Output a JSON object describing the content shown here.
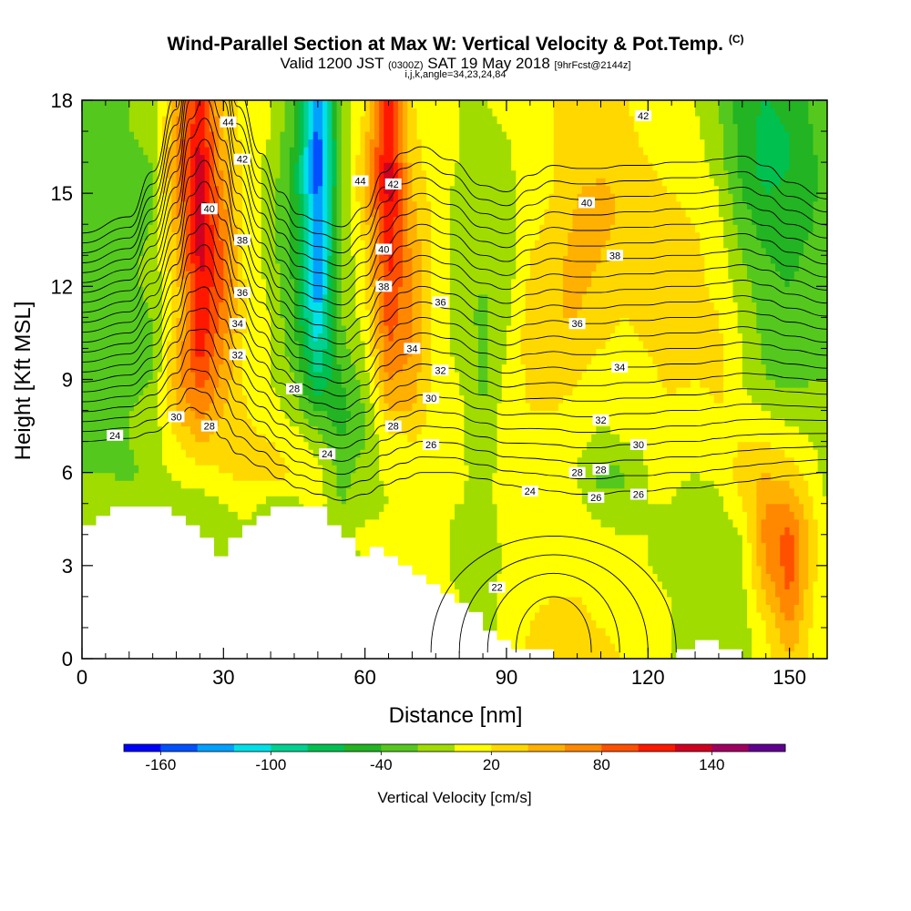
{
  "title": {
    "main": "Wind-Parallel Section at Max W: Vertical Velocity & Pot.Temp.",
    "copyright": "(C)",
    "valid_prefix": "Valid 1200 JST",
    "valid_utc": "(0300Z)",
    "valid_date": "SAT 19 May 2018",
    "forecast": "[9hrFcst@2144z]",
    "grid_info": "i,j,k,angle=34,23,24,84"
  },
  "chart_data": {
    "type": "heatmap",
    "title": "Wind-Parallel Section at Max W: Vertical Velocity & Pot.Temp.",
    "xlabel": "Distance [nm]",
    "ylabel": "Height [Kft MSL]",
    "xlim": [
      0,
      158
    ],
    "ylim": [
      0,
      18
    ],
    "xticks": [
      0,
      30,
      60,
      90,
      120,
      150
    ],
    "yticks": [
      0,
      3,
      6,
      9,
      12,
      15,
      18
    ],
    "colorbar": {
      "label": "Vertical Velocity [cm/s]",
      "tick_labels": [
        "-160",
        "-100",
        "-40",
        "20",
        "80",
        "140"
      ],
      "levels": [
        -180,
        -160,
        -140,
        -120,
        -100,
        -80,
        -60,
        -40,
        -20,
        0,
        20,
        40,
        60,
        80,
        100,
        120,
        140,
        160,
        180
      ],
      "colors": [
        "#0000ff",
        "#0050ff",
        "#00a0ff",
        "#00e0e8",
        "#00d090",
        "#00c050",
        "#22b422",
        "#55c81e",
        "#a0dc00",
        "#ffff00",
        "#ffd800",
        "#ffb000",
        "#ff8800",
        "#ff5000",
        "#ff1800",
        "#d00020",
        "#a00060",
        "#600090"
      ]
    },
    "w_field": {
      "x": [
        0,
        5,
        10,
        15,
        20,
        25,
        30,
        35,
        40,
        45,
        50,
        55,
        60,
        65,
        70,
        75,
        80,
        85,
        90,
        95,
        100,
        105,
        110,
        115,
        120,
        125,
        130,
        135,
        140,
        145,
        150,
        155,
        158
      ],
      "y": [
        0,
        1,
        2,
        3,
        4,
        5,
        6,
        7,
        8,
        9,
        10,
        11,
        12,
        13,
        14,
        15,
        16,
        17,
        18
      ],
      "values": [
        [
          -10,
          -10,
          -10,
          -10,
          -10,
          -10,
          -10,
          -10,
          -10,
          -10,
          -10,
          -10,
          -10,
          -10,
          5,
          10,
          0,
          -20,
          10,
          25,
          35,
          30,
          25,
          20,
          10,
          0,
          -10,
          -15,
          -10,
          15,
          40,
          10,
          0
        ],
        [
          -10,
          -10,
          -10,
          -10,
          -10,
          -10,
          -10,
          -10,
          -10,
          -10,
          -10,
          -10,
          -10,
          -10,
          5,
          10,
          0,
          -15,
          10,
          20,
          30,
          25,
          20,
          15,
          10,
          0,
          -10,
          -15,
          -10,
          20,
          60,
          15,
          0
        ],
        [
          -10,
          -10,
          -10,
          -10,
          -10,
          -10,
          -10,
          -10,
          -10,
          -10,
          -10,
          -10,
          -10,
          5,
          10,
          10,
          0,
          -15,
          10,
          15,
          20,
          20,
          15,
          10,
          5,
          0,
          -10,
          -15,
          -5,
          40,
          80,
          20,
          0
        ],
        [
          -10,
          -10,
          -10,
          -10,
          -10,
          -10,
          -10,
          -10,
          -10,
          -10,
          -10,
          -10,
          0,
          10,
          10,
          5,
          -5,
          -15,
          5,
          10,
          15,
          15,
          10,
          5,
          0,
          -5,
          -10,
          -15,
          -5,
          60,
          90,
          30,
          0
        ],
        [
          -10,
          -10,
          -10,
          -10,
          -10,
          -10,
          -10,
          -10,
          -10,
          -10,
          -10,
          -5,
          5,
          10,
          10,
          5,
          -5,
          -10,
          5,
          5,
          10,
          10,
          5,
          0,
          0,
          -10,
          -10,
          -10,
          0,
          70,
          85,
          30,
          0
        ],
        [
          0,
          -5,
          -10,
          -10,
          -10,
          -10,
          0,
          10,
          -10,
          -5,
          10,
          -20,
          -10,
          0,
          10,
          5,
          0,
          -5,
          5,
          10,
          10,
          5,
          -10,
          -20,
          0,
          0,
          -10,
          -5,
          20,
          60,
          60,
          20,
          0
        ],
        [
          -20,
          -20,
          -25,
          -10,
          5,
          10,
          20,
          25,
          30,
          20,
          10,
          -30,
          -10,
          5,
          15,
          10,
          5,
          -10,
          10,
          15,
          10,
          0,
          -30,
          -20,
          0,
          5,
          0,
          5,
          30,
          40,
          30,
          10,
          -10
        ],
        [
          -25,
          -30,
          -20,
          -10,
          20,
          40,
          30,
          25,
          20,
          10,
          -10,
          -40,
          -20,
          10,
          20,
          10,
          5,
          -15,
          10,
          15,
          10,
          5,
          -5,
          0,
          5,
          10,
          5,
          10,
          20,
          20,
          10,
          0,
          -20
        ],
        [
          -25,
          -30,
          -20,
          -15,
          40,
          70,
          40,
          20,
          10,
          -10,
          -40,
          -50,
          -20,
          40,
          40,
          10,
          5,
          -20,
          10,
          20,
          20,
          10,
          5,
          5,
          10,
          15,
          10,
          20,
          10,
          0,
          -10,
          -15,
          -20
        ],
        [
          -25,
          -30,
          -25,
          -20,
          50,
          90,
          50,
          15,
          0,
          -20,
          -80,
          -40,
          -10,
          60,
          50,
          10,
          0,
          -25,
          5,
          25,
          35,
          20,
          10,
          10,
          15,
          25,
          20,
          25,
          0,
          -20,
          -25,
          -20,
          -20
        ],
        [
          -25,
          -30,
          -25,
          -20,
          40,
          110,
          60,
          15,
          0,
          -30,
          -100,
          -30,
          0,
          80,
          60,
          10,
          -5,
          -25,
          0,
          30,
          40,
          30,
          20,
          15,
          20,
          30,
          25,
          25,
          0,
          -25,
          -30,
          -25,
          -20
        ],
        [
          -25,
          -30,
          -25,
          -20,
          30,
          120,
          70,
          15,
          0,
          -40,
          -120,
          -20,
          10,
          90,
          60,
          10,
          -10,
          -25,
          -5,
          30,
          40,
          40,
          25,
          20,
          25,
          35,
          30,
          20,
          -5,
          -30,
          -35,
          -25,
          -20
        ],
        [
          -25,
          -30,
          -25,
          -15,
          30,
          120,
          80,
          15,
          -5,
          -40,
          -140,
          -20,
          15,
          100,
          60,
          10,
          -10,
          -20,
          -10,
          25,
          35,
          45,
          35,
          25,
          30,
          35,
          25,
          15,
          -10,
          -35,
          -40,
          -30,
          -20
        ],
        [
          -25,
          -30,
          -25,
          -15,
          40,
          130,
          80,
          10,
          -10,
          -50,
          -140,
          -20,
          20,
          110,
          55,
          10,
          -10,
          -20,
          -10,
          20,
          30,
          50,
          40,
          30,
          30,
          30,
          25,
          10,
          -20,
          -40,
          -45,
          -35,
          -20
        ],
        [
          -25,
          -30,
          -25,
          -20,
          50,
          130,
          70,
          10,
          -10,
          -50,
          -150,
          -20,
          30,
          120,
          50,
          10,
          -10,
          -15,
          -10,
          15,
          25,
          45,
          45,
          35,
          30,
          25,
          20,
          5,
          -30,
          -50,
          -50,
          -40,
          -20
        ],
        [
          -25,
          -30,
          -25,
          -20,
          60,
          130,
          60,
          10,
          -10,
          -50,
          -150,
          -20,
          40,
          130,
          40,
          10,
          -5,
          -10,
          -10,
          15,
          20,
          40,
          45,
          35,
          25,
          20,
          15,
          0,
          -40,
          -60,
          -55,
          -45,
          -20
        ],
        [
          -25,
          -30,
          -25,
          -20,
          70,
          130,
          50,
          10,
          -5,
          -50,
          -160,
          -20,
          40,
          130,
          30,
          5,
          0,
          -10,
          -5,
          15,
          20,
          30,
          35,
          30,
          20,
          15,
          10,
          -10,
          -50,
          -70,
          -60,
          -45,
          -20
        ],
        [
          -25,
          -25,
          -20,
          -15,
          60,
          120,
          40,
          10,
          0,
          -40,
          -150,
          -20,
          30,
          120,
          25,
          5,
          0,
          -5,
          0,
          15,
          20,
          25,
          25,
          25,
          15,
          10,
          5,
          -15,
          -50,
          -70,
          -60,
          -40,
          -20
        ],
        [
          -25,
          -25,
          -20,
          -15,
          50,
          110,
          35,
          10,
          0,
          -30,
          -140,
          -20,
          20,
          110,
          20,
          5,
          0,
          0,
          5,
          15,
          20,
          20,
          20,
          20,
          15,
          5,
          0,
          -20,
          -50,
          -60,
          -50,
          -35,
          -20
        ]
      ]
    },
    "terrain": {
      "x": [
        0,
        3,
        3,
        6,
        6,
        19,
        19,
        22,
        22,
        25,
        25,
        28,
        28,
        31,
        31,
        34,
        34,
        37,
        37,
        40,
        40,
        43,
        43,
        46,
        46,
        49,
        49,
        52,
        52,
        55,
        55,
        58,
        58,
        61,
        61,
        64,
        64,
        67,
        67,
        70,
        70,
        73,
        73,
        76,
        76,
        79,
        79,
        82,
        82,
        85,
        85,
        88,
        88,
        91,
        91,
        100,
        100,
        126,
        126,
        130,
        130,
        135,
        135,
        140,
        140,
        158
      ],
      "y": [
        4.3,
        4.3,
        4.6,
        4.6,
        4.9,
        4.9,
        4.6,
        4.6,
        4.3,
        4.3,
        3.9,
        3.9,
        3.3,
        3.3,
        3.9,
        3.9,
        4.3,
        4.3,
        4.6,
        4.6,
        4.9,
        4.9,
        4.9,
        4.9,
        4.9,
        4.9,
        4.9,
        4.9,
        4.3,
        4.3,
        3.9,
        3.9,
        3.3,
        3.3,
        3.6,
        3.6,
        3.3,
        3.3,
        3.0,
        3.0,
        2.7,
        2.7,
        2.4,
        2.4,
        2.1,
        2.1,
        1.8,
        1.8,
        1.5,
        1.5,
        0.9,
        0.9,
        0.6,
        0.6,
        0.3,
        0.3,
        0,
        0,
        0.3,
        0.3,
        0.6,
        0.6,
        0.3,
        0.3,
        0,
        0
      ]
    },
    "theta_contours": {
      "levels": [
        24,
        25,
        26,
        27,
        28,
        29,
        30,
        31,
        32,
        33,
        34,
        35,
        36,
        37,
        38,
        39,
        40,
        41,
        42,
        43,
        44,
        45
      ],
      "x": [
        0,
        10,
        15,
        20,
        23,
        26,
        30,
        33,
        38,
        42,
        46,
        50,
        55,
        60,
        64,
        68,
        72,
        78,
        85,
        90,
        95,
        100,
        105,
        110,
        115,
        120,
        125,
        130,
        135,
        140,
        145,
        150,
        158
      ],
      "h24": [
        7.0,
        7.1,
        7.3,
        7.7,
        8.1,
        7.9,
        7.1,
        6.6,
        6.2,
        5.8,
        5.5,
        5.3,
        5.1,
        5.3,
        5.6,
        5.8,
        6.0,
        6.0,
        5.8,
        5.6,
        5.5,
        5.4,
        5.3,
        5.3,
        5.4,
        5.4,
        5.5,
        5.5,
        5.6,
        5.7,
        5.8,
        5.9,
        6.0
      ],
      "h_step": [
        0.32,
        0.34,
        0.4,
        0.5,
        0.62,
        0.68,
        0.64,
        0.56,
        0.48,
        0.44,
        0.42,
        0.42,
        0.42,
        0.44,
        0.48,
        0.5,
        0.5,
        0.48,
        0.45,
        0.45,
        0.48,
        0.5,
        0.5,
        0.5,
        0.5,
        0.5,
        0.5,
        0.5,
        0.5,
        0.5,
        0.48,
        0.45,
        0.42
      ],
      "labels": [
        {
          "text": "24",
          "x": 7,
          "y": 7.2
        },
        {
          "text": "28",
          "x": 27,
          "y": 7.5
        },
        {
          "text": "30",
          "x": 20,
          "y": 7.8
        },
        {
          "text": "28",
          "x": 45,
          "y": 8.7
        },
        {
          "text": "32",
          "x": 33,
          "y": 9.8
        },
        {
          "text": "34",
          "x": 33,
          "y": 10.8
        },
        {
          "text": "36",
          "x": 34,
          "y": 11.8
        },
        {
          "text": "38",
          "x": 34,
          "y": 13.5
        },
        {
          "text": "40",
          "x": 27,
          "y": 14.5
        },
        {
          "text": "42",
          "x": 34,
          "y": 16.1
        },
        {
          "text": "44",
          "x": 31,
          "y": 17.3
        },
        {
          "text": "24",
          "x": 52,
          "y": 6.6
        },
        {
          "text": "26",
          "x": 74,
          "y": 6.9
        },
        {
          "text": "28",
          "x": 66,
          "y": 7.5
        },
        {
          "text": "30",
          "x": 74,
          "y": 8.4
        },
        {
          "text": "32",
          "x": 76,
          "y": 9.3
        },
        {
          "text": "34",
          "x": 70,
          "y": 10.0
        },
        {
          "text": "36",
          "x": 76,
          "y": 11.5
        },
        {
          "text": "38",
          "x": 64,
          "y": 12.0
        },
        {
          "text": "40",
          "x": 64,
          "y": 13.2
        },
        {
          "text": "42",
          "x": 66,
          "y": 15.3
        },
        {
          "text": "44",
          "x": 59,
          "y": 15.4
        },
        {
          "text": "22",
          "x": 88,
          "y": 2.3
        },
        {
          "text": "24",
          "x": 95,
          "y": 5.4
        },
        {
          "text": "26",
          "x": 109,
          "y": 5.2
        },
        {
          "text": "28",
          "x": 105,
          "y": 6.0
        },
        {
          "text": "30",
          "x": 118,
          "y": 6.9
        },
        {
          "text": "32",
          "x": 110,
          "y": 7.7
        },
        {
          "text": "34",
          "x": 114,
          "y": 9.4
        },
        {
          "text": "36",
          "x": 105,
          "y": 10.8
        },
        {
          "text": "38",
          "x": 113,
          "y": 13.0
        },
        {
          "text": "40",
          "x": 107,
          "y": 14.7
        },
        {
          "text": "42",
          "x": 119,
          "y": 17.5
        },
        {
          "text": "26",
          "x": 118,
          "y": 5.3
        },
        {
          "text": "28",
          "x": 110,
          "y": 6.1
        },
        {
          "text": "30",
          "x": 118,
          "y": 6.9
        }
      ]
    }
  }
}
